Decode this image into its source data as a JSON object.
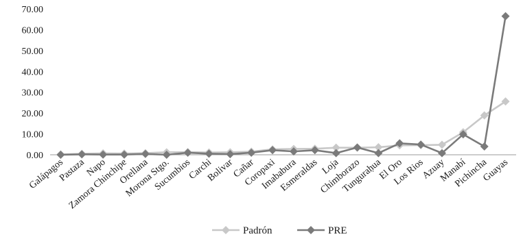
{
  "chart_data": {
    "type": "line",
    "categories": [
      "Galápagos",
      "Pastaza",
      "Napo",
      "Zamora Chinchipe",
      "Orellana",
      "Morona Stgo.",
      "Sucumbios",
      "Carchi",
      "Bolivar",
      "Cañar",
      "Coropaxi",
      "Imababura",
      "Esmeraldas",
      "Loja",
      "Chimborazo",
      "Tunguraḥua",
      "El Oro",
      "Los Rios",
      "Azuay",
      "Manabí",
      "Pichincha",
      "Guayas"
    ],
    "series": [
      {
        "name": "Padrón",
        "color": "#c8c8c8",
        "marker": "diamond",
        "values": [
          0.2,
          0.5,
          0.7,
          0.6,
          0.8,
          1.2,
          1.3,
          1.1,
          1.2,
          1.5,
          2.6,
          2.8,
          2.9,
          3.4,
          3.4,
          3.6,
          4.5,
          4.6,
          4.8,
          10.8,
          18.9,
          25.6
        ]
      },
      {
        "name": "PRE",
        "color": "#7a7a7a",
        "marker": "diamond",
        "values": [
          0.0,
          0.2,
          0.1,
          0.1,
          0.4,
          0.0,
          1.0,
          0.5,
          0.3,
          1.0,
          2.2,
          1.6,
          2.2,
          0.8,
          3.5,
          0.8,
          5.5,
          4.9,
          0.8,
          9.8,
          4.0,
          66.5
        ]
      }
    ],
    "ylim": [
      0,
      70
    ],
    "yticks": [
      "0.00",
      "10.00",
      "20.00",
      "30.00",
      "40.00",
      "50.00",
      "60.00",
      "70.00"
    ],
    "legend_position": "bottom-center",
    "grid": false
  }
}
